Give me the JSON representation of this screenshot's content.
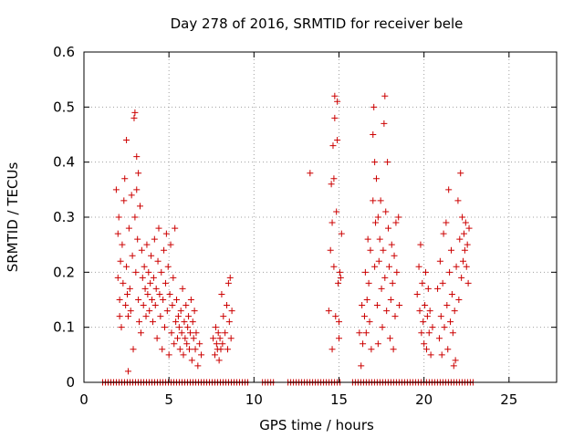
{
  "chart_data": {
    "type": "scatter",
    "title": "Day 278 of 2016, SRMTID for receiver bele",
    "xlabel": "GPS time / hours",
    "ylabel": "SRMTID / TECUs",
    "xlim": [
      0,
      27.8
    ],
    "ylim": [
      0,
      0.6
    ],
    "xticks": [
      0,
      5,
      10,
      15,
      20,
      25
    ],
    "xtick_labels": [
      "0",
      "5",
      "10",
      "15",
      "20",
      "25"
    ],
    "yticks": [
      0,
      0.1,
      0.2,
      0.3,
      0.4,
      0.5,
      0.6
    ],
    "ytick_labels": [
      "0",
      "0.1",
      "0.2",
      "0.3",
      "0.4",
      "0.5",
      "0.6"
    ],
    "grid": true,
    "marker": "+",
    "color": "#cc0000",
    "series": [
      {
        "name": "SRMTID",
        "points": [
          [
            1.9,
            0.35
          ],
          [
            2.0,
            0.27
          ],
          [
            2.0,
            0.19
          ],
          [
            2.05,
            0.3
          ],
          [
            2.1,
            0.15
          ],
          [
            2.1,
            0.12
          ],
          [
            2.15,
            0.22
          ],
          [
            2.2,
            0.1
          ],
          [
            2.25,
            0.25
          ],
          [
            2.3,
            0.18
          ],
          [
            2.35,
            0.33
          ],
          [
            2.4,
            0.37
          ],
          [
            2.45,
            0.14
          ],
          [
            2.5,
            0.44
          ],
          [
            2.5,
            0.21
          ],
          [
            2.55,
            0.16
          ],
          [
            2.6,
            0.02
          ],
          [
            2.6,
            0.12
          ],
          [
            2.65,
            0.28
          ],
          [
            2.7,
            0.17
          ],
          [
            2.75,
            0.13
          ],
          [
            2.8,
            0.34
          ],
          [
            2.85,
            0.23
          ],
          [
            2.9,
            0.06
          ],
          [
            2.95,
            0.48
          ],
          [
            3.0,
            0.49
          ],
          [
            3.0,
            0.3
          ],
          [
            3.05,
            0.2
          ],
          [
            3.1,
            0.35
          ],
          [
            3.1,
            0.41
          ],
          [
            3.15,
            0.26
          ],
          [
            3.2,
            0.38
          ],
          [
            3.2,
            0.15
          ],
          [
            3.25,
            0.11
          ],
          [
            3.3,
            0.32
          ],
          [
            3.35,
            0.09
          ],
          [
            3.4,
            0.24
          ],
          [
            3.45,
            0.19
          ],
          [
            3.5,
            0.14
          ],
          [
            3.55,
            0.21
          ],
          [
            3.6,
            0.17
          ],
          [
            3.65,
            0.12
          ],
          [
            3.7,
            0.25
          ],
          [
            3.75,
            0.16
          ],
          [
            3.8,
            0.2
          ],
          [
            3.85,
            0.13
          ],
          [
            3.9,
            0.18
          ],
          [
            3.95,
            0.23
          ],
          [
            4.0,
            0.15
          ],
          [
            4.05,
            0.11
          ],
          [
            4.1,
            0.19
          ],
          [
            4.15,
            0.26
          ],
          [
            4.2,
            0.14
          ],
          [
            4.25,
            0.17
          ],
          [
            4.3,
            0.08
          ],
          [
            4.35,
            0.22
          ],
          [
            4.4,
            0.28
          ],
          [
            4.45,
            0.16
          ],
          [
            4.5,
            0.12
          ],
          [
            4.55,
            0.2
          ],
          [
            4.6,
            0.06
          ],
          [
            4.65,
            0.15
          ],
          [
            4.7,
            0.24
          ],
          [
            4.75,
            0.1
          ],
          [
            4.8,
            0.18
          ],
          [
            4.85,
            0.27
          ],
          [
            4.9,
            0.13
          ],
          [
            4.95,
            0.21
          ],
          [
            5.0,
            0.05
          ],
          [
            5.05,
            0.16
          ],
          [
            5.1,
            0.25
          ],
          [
            5.15,
            0.09
          ],
          [
            5.2,
            0.14
          ],
          [
            5.25,
            0.19
          ],
          [
            5.3,
            0.07
          ],
          [
            5.35,
            0.28
          ],
          [
            5.4,
            0.11
          ],
          [
            5.45,
            0.15
          ],
          [
            5.5,
            0.08
          ],
          [
            5.55,
            0.12
          ],
          [
            5.6,
            0.1
          ],
          [
            5.65,
            0.06
          ],
          [
            5.7,
            0.13
          ],
          [
            5.75,
            0.09
          ],
          [
            5.8,
            0.17
          ],
          [
            5.85,
            0.05
          ],
          [
            5.9,
            0.11
          ],
          [
            5.95,
            0.08
          ],
          [
            6.0,
            0.14
          ],
          [
            6.05,
            0.07
          ],
          [
            6.1,
            0.1
          ],
          [
            6.15,
            0.12
          ],
          [
            6.2,
            0.06
          ],
          [
            6.25,
            0.09
          ],
          [
            6.3,
            0.15
          ],
          [
            6.35,
            0.04
          ],
          [
            6.4,
            0.11
          ],
          [
            6.45,
            0.08
          ],
          [
            6.5,
            0.13
          ],
          [
            6.55,
            0.06
          ],
          [
            6.6,
            0.09
          ],
          [
            6.7,
            0.03
          ],
          [
            6.8,
            0.07
          ],
          [
            6.9,
            0.05
          ],
          [
            7.6,
            0.08
          ],
          [
            7.7,
            0.05
          ],
          [
            7.75,
            0.1
          ],
          [
            7.8,
            0.07
          ],
          [
            7.85,
            0.06
          ],
          [
            7.9,
            0.09
          ],
          [
            7.95,
            0.04
          ],
          [
            8.0,
            0.08
          ],
          [
            8.05,
            0.06
          ],
          [
            8.1,
            0.16
          ],
          [
            8.15,
            0.07
          ],
          [
            8.2,
            0.12
          ],
          [
            8.3,
            0.09
          ],
          [
            8.4,
            0.14
          ],
          [
            8.45,
            0.06
          ],
          [
            8.5,
            0.18
          ],
          [
            8.55,
            0.11
          ],
          [
            8.6,
            0.19
          ],
          [
            8.65,
            0.08
          ],
          [
            8.7,
            0.13
          ],
          [
            13.3,
            0.38
          ],
          [
            14.4,
            0.13
          ],
          [
            14.5,
            0.24
          ],
          [
            14.55,
            0.36
          ],
          [
            14.6,
            0.29
          ],
          [
            14.65,
            0.43
          ],
          [
            14.7,
            0.21
          ],
          [
            14.75,
            0.48
          ],
          [
            14.75,
            0.52
          ],
          [
            14.8,
            0.12
          ],
          [
            14.85,
            0.31
          ],
          [
            14.9,
            0.44
          ],
          [
            14.9,
            0.51
          ],
          [
            14.95,
            0.18
          ],
          [
            15.0,
            0.11
          ],
          [
            15.0,
            0.08
          ],
          [
            15.05,
            0.2
          ],
          [
            15.1,
            0.19
          ],
          [
            15.15,
            0.27
          ],
          [
            14.6,
            0.06
          ],
          [
            14.7,
            0.37
          ],
          [
            16.3,
            0.03
          ],
          [
            16.4,
            0.07
          ],
          [
            16.5,
            0.12
          ],
          [
            16.55,
            0.2
          ],
          [
            16.6,
            0.09
          ],
          [
            16.65,
            0.15
          ],
          [
            16.7,
            0.26
          ],
          [
            16.75,
            0.18
          ],
          [
            16.8,
            0.11
          ],
          [
            16.85,
            0.24
          ],
          [
            16.9,
            0.06
          ],
          [
            17.0,
            0.33
          ],
          [
            17.05,
            0.5
          ],
          [
            17.1,
            0.4
          ],
          [
            17.1,
            0.21
          ],
          [
            17.15,
            0.29
          ],
          [
            17.2,
            0.37
          ],
          [
            17.25,
            0.14
          ],
          [
            17.3,
            0.3
          ],
          [
            17.35,
            0.22
          ],
          [
            17.4,
            0.26
          ],
          [
            17.45,
            0.33
          ],
          [
            17.5,
            0.17
          ],
          [
            17.55,
            0.1
          ],
          [
            17.6,
            0.24
          ],
          [
            17.65,
            0.47
          ],
          [
            17.7,
            0.19
          ],
          [
            17.7,
            0.52
          ],
          [
            17.75,
            0.31
          ],
          [
            17.8,
            0.13
          ],
          [
            17.85,
            0.4
          ],
          [
            17.9,
            0.28
          ],
          [
            17.95,
            0.21
          ],
          [
            18.0,
            0.08
          ],
          [
            18.05,
            0.15
          ],
          [
            18.1,
            0.25
          ],
          [
            18.15,
            0.18
          ],
          [
            18.2,
            0.06
          ],
          [
            18.25,
            0.23
          ],
          [
            18.3,
            0.12
          ],
          [
            18.35,
            0.29
          ],
          [
            18.4,
            0.2
          ],
          [
            18.5,
            0.3
          ],
          [
            18.55,
            0.14
          ],
          [
            16.2,
            0.09
          ],
          [
            16.35,
            0.14
          ],
          [
            17.0,
            0.45
          ],
          [
            17.3,
            0.07
          ],
          [
            19.6,
            0.16
          ],
          [
            19.7,
            0.21
          ],
          [
            19.75,
            0.13
          ],
          [
            19.8,
            0.25
          ],
          [
            19.85,
            0.09
          ],
          [
            19.9,
            0.18
          ],
          [
            19.95,
            0.11
          ],
          [
            20.0,
            0.07
          ],
          [
            20.05,
            0.14
          ],
          [
            20.1,
            0.2
          ],
          [
            20.15,
            0.06
          ],
          [
            20.2,
            0.12
          ],
          [
            20.25,
            0.17
          ],
          [
            20.3,
            0.09
          ],
          [
            20.35,
            0.13
          ],
          [
            20.4,
            0.05
          ],
          [
            20.5,
            0.1
          ],
          [
            20.8,
            0.17
          ],
          [
            20.9,
            0.08
          ],
          [
            20.95,
            0.22
          ],
          [
            21.0,
            0.12
          ],
          [
            21.05,
            0.05
          ],
          [
            21.1,
            0.18
          ],
          [
            21.15,
            0.27
          ],
          [
            21.2,
            0.1
          ],
          [
            21.3,
            0.29
          ],
          [
            21.35,
            0.14
          ],
          [
            21.4,
            0.06
          ],
          [
            21.45,
            0.35
          ],
          [
            21.5,
            0.2
          ],
          [
            21.55,
            0.11
          ],
          [
            21.6,
            0.24
          ],
          [
            21.65,
            0.16
          ],
          [
            21.7,
            0.09
          ],
          [
            21.75,
            0.03
          ],
          [
            21.8,
            0.13
          ],
          [
            21.85,
            0.04
          ],
          [
            21.9,
            0.21
          ],
          [
            22.0,
            0.33
          ],
          [
            22.05,
            0.15
          ],
          [
            22.1,
            0.26
          ],
          [
            22.15,
            0.38
          ],
          [
            22.2,
            0.19
          ],
          [
            22.25,
            0.3
          ],
          [
            22.3,
            0.22
          ],
          [
            22.35,
            0.27
          ],
          [
            22.4,
            0.24
          ],
          [
            22.45,
            0.29
          ],
          [
            22.5,
            0.21
          ],
          [
            22.55,
            0.25
          ],
          [
            22.6,
            0.18
          ],
          [
            22.65,
            0.28
          ]
        ]
      }
    ],
    "zero_segments": [
      [
        1.1,
        9.7
      ],
      [
        10.5,
        11.2
      ],
      [
        12.0,
        15.1
      ],
      [
        15.8,
        22.9
      ]
    ]
  }
}
